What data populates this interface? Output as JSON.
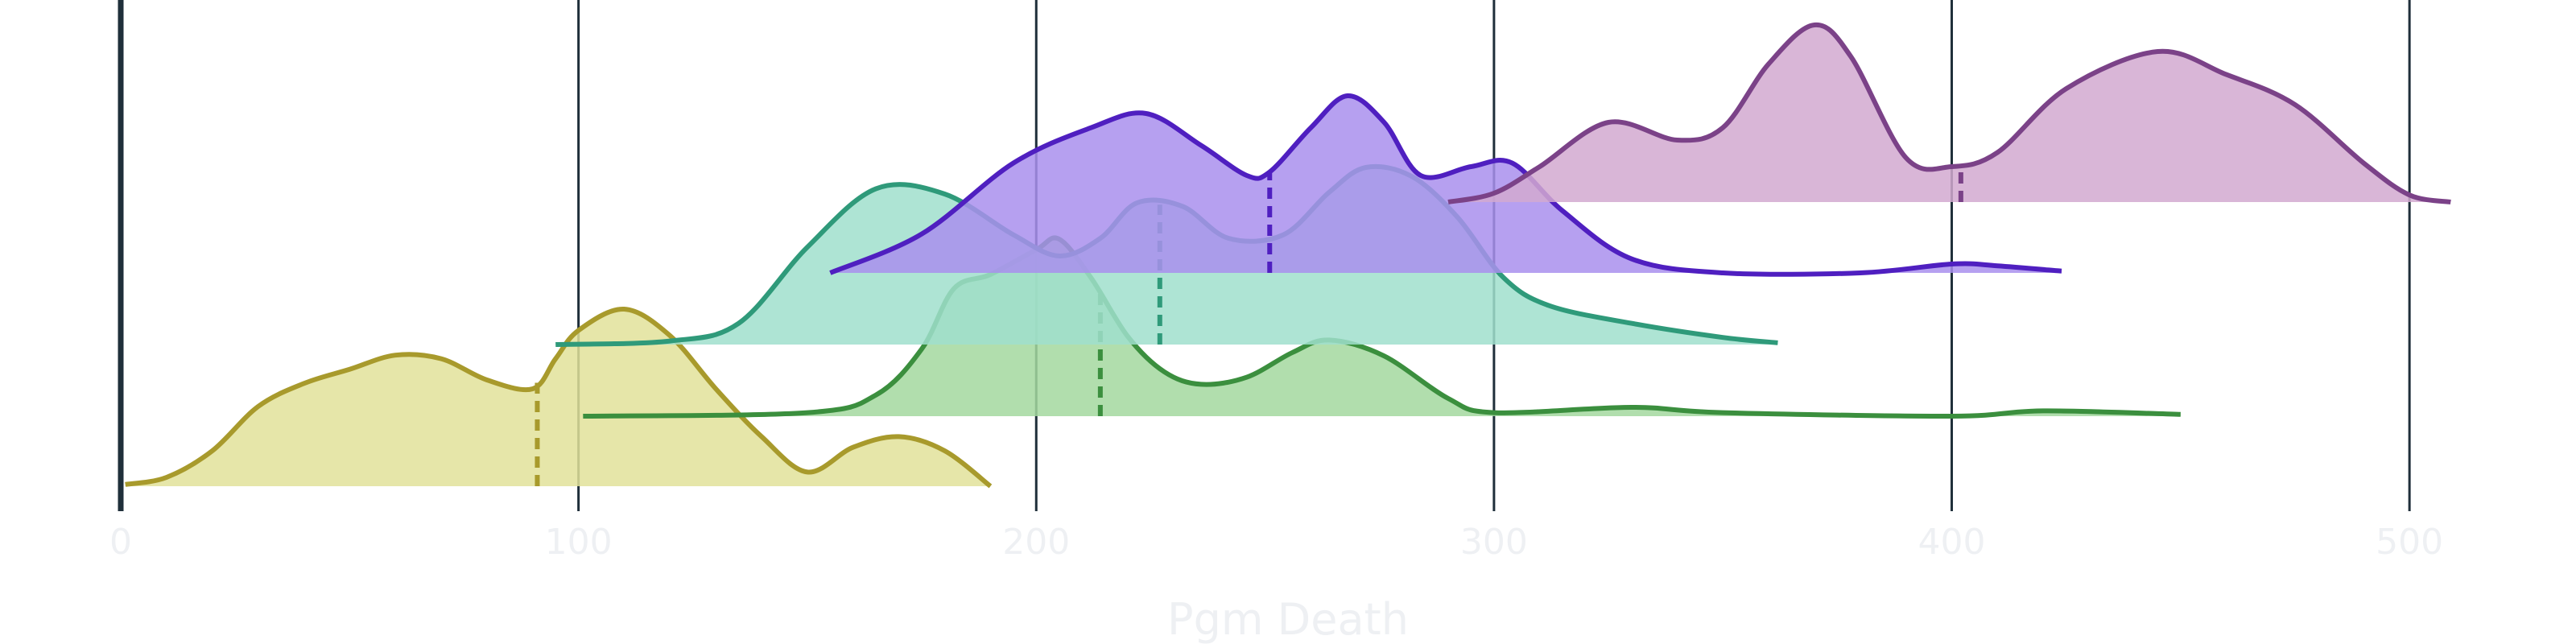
{
  "chart_data": {
    "type": "ridgeline",
    "xlabel": "Pgm Death",
    "xlim": [
      0,
      510
    ],
    "xticks": [
      0,
      100,
      200,
      300,
      400,
      500
    ],
    "tick_labels": [
      "0",
      "100",
      "200",
      "300",
      "400",
      "500"
    ],
    "grid": true,
    "legend": "none",
    "series": [
      {
        "color": "#a89a2c",
        "fill": "#e2e29a",
        "marker_x": 91,
        "density_x": [
          1,
          10,
          20,
          30,
          40,
          50,
          60,
          70,
          80,
          90,
          95,
          100,
          110,
          120,
          130,
          140,
          150,
          160,
          170,
          180,
          190
        ],
        "density_y": [
          0.01,
          0.05,
          0.2,
          0.45,
          0.58,
          0.66,
          0.74,
          0.72,
          0.6,
          0.55,
          0.72,
          0.88,
          1.0,
          0.85,
          0.55,
          0.28,
          0.08,
          0.22,
          0.28,
          0.2,
          0.0
        ]
      },
      {
        "color": "#3b8f3e",
        "fill": "#a3d89f",
        "marker_x": 214,
        "density_x": [
          101,
          150,
          165,
          175,
          182,
          190,
          200,
          205,
          212,
          220,
          228,
          236,
          246,
          256,
          264,
          276,
          290,
          300,
          330,
          350,
          400,
          420,
          450
        ],
        "density_y": [
          0.0,
          0.02,
          0.12,
          0.38,
          0.72,
          0.8,
          0.94,
          1.0,
          0.78,
          0.45,
          0.25,
          0.18,
          0.22,
          0.36,
          0.43,
          0.34,
          0.1,
          0.02,
          0.05,
          0.02,
          0.0,
          0.03,
          0.01
        ]
      },
      {
        "color": "#2f9a7a",
        "fill": "#a0dfcc",
        "marker_x": 227,
        "density_x": [
          95,
          120,
          135,
          150,
          165,
          180,
          195,
          205,
          214,
          222,
          232,
          242,
          254,
          264,
          272,
          282,
          292,
          302,
          312,
          330,
          350,
          362
        ],
        "density_y": [
          0.0,
          0.02,
          0.12,
          0.55,
          0.88,
          0.85,
          0.62,
          0.5,
          0.6,
          0.8,
          0.78,
          0.6,
          0.62,
          0.86,
          1.0,
          0.95,
          0.72,
          0.38,
          0.22,
          0.12,
          0.04,
          0.01
        ]
      },
      {
        "color": "#4f1fc0",
        "fill": "#a98fed",
        "marker_x": 251,
        "density_x": [
          155,
          175,
          195,
          212,
          224,
          236,
          246,
          251,
          260,
          268,
          276,
          284,
          295,
          304,
          315,
          330,
          350,
          380,
          400,
          410,
          424
        ],
        "density_y": [
          0.0,
          0.22,
          0.62,
          0.82,
          0.9,
          0.72,
          0.55,
          0.57,
          0.82,
          1.0,
          0.85,
          0.55,
          0.6,
          0.62,
          0.35,
          0.08,
          0.0,
          0.0,
          0.05,
          0.04,
          0.01
        ]
      },
      {
        "color": "#7b4288",
        "fill": "#d2a9d0",
        "marker_x": 402,
        "density_x": [
          290,
          300,
          310,
          325,
          340,
          350,
          360,
          370,
          378,
          390,
          400,
          410,
          425,
          445,
          460,
          475,
          490,
          500,
          509
        ],
        "density_y": [
          0.0,
          0.05,
          0.2,
          0.45,
          0.35,
          0.42,
          0.78,
          1.0,
          0.82,
          0.25,
          0.2,
          0.28,
          0.64,
          0.85,
          0.72,
          0.55,
          0.22,
          0.04,
          0.0
        ]
      }
    ]
  }
}
